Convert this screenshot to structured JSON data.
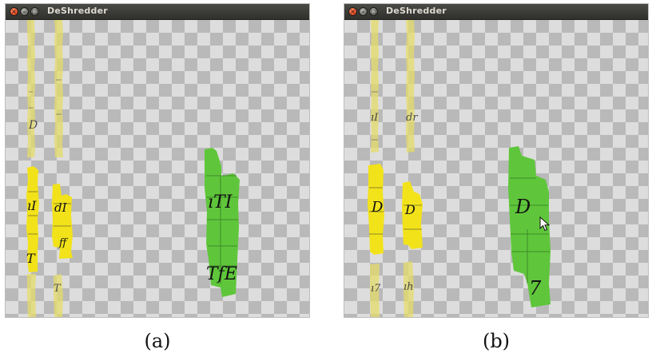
{
  "windows": [
    {
      "title": "DeShredder",
      "caption": "(a)"
    },
    {
      "title": "DeShredder",
      "caption": "(b)"
    }
  ],
  "colors": {
    "yellow_strip": "#f2e21a",
    "yellow_faded": "#e6dc6a",
    "green_cluster": "#5fc63b",
    "ink": "#111111",
    "titlebar": "#3c3c39"
  }
}
